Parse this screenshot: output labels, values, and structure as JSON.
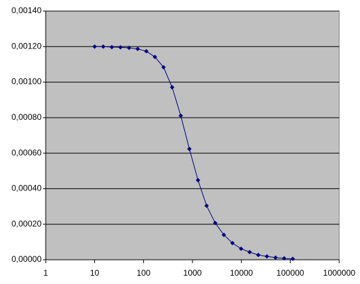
{
  "chart_data": {
    "type": "line",
    "xscale": "log",
    "grid": true,
    "x": [
      10,
      15,
      22.5,
      33.75,
      50.63,
      75.94,
      113.9,
      170.9,
      256.3,
      384.4,
      576.7,
      865,
      1297,
      1946,
      2919,
      4379,
      6568,
      9853,
      14779,
      22168,
      33253,
      49879,
      74818,
      112227
    ],
    "series": [
      {
        "color": "#000080",
        "values": [
          0.0012,
          0.0012,
          0.001197,
          0.001196,
          0.001193,
          0.001187,
          0.001174,
          0.001142,
          0.001084,
          0.000971,
          0.000811,
          0.000624,
          0.000448,
          0.000304,
          0.000207,
          0.00014,
          9.4e-05,
          6.2e-05,
          4.3e-05,
          2.7e-05,
          1.9e-05,
          1.2e-05,
          8e-06,
          5e-06
        ]
      }
    ],
    "xlim": [
      1,
      1000000
    ],
    "xticks": [
      1,
      10,
      100,
      1000,
      10000,
      100000,
      1000000
    ],
    "ylim": [
      0,
      0.0014
    ],
    "yticks": [
      {
        "value": 0,
        "label": "0,00000"
      },
      {
        "value": 0.0002,
        "label": "0,00020"
      },
      {
        "value": 0.0004,
        "label": "0,00040"
      },
      {
        "value": 0.0006,
        "label": "0,00060"
      },
      {
        "value": 0.0008,
        "label": "0,00080"
      },
      {
        "value": 0.001,
        "label": "0,00100"
      },
      {
        "value": 0.0012,
        "label": "0,00120"
      },
      {
        "value": 0.0014,
        "label": "0,00140"
      }
    ]
  }
}
